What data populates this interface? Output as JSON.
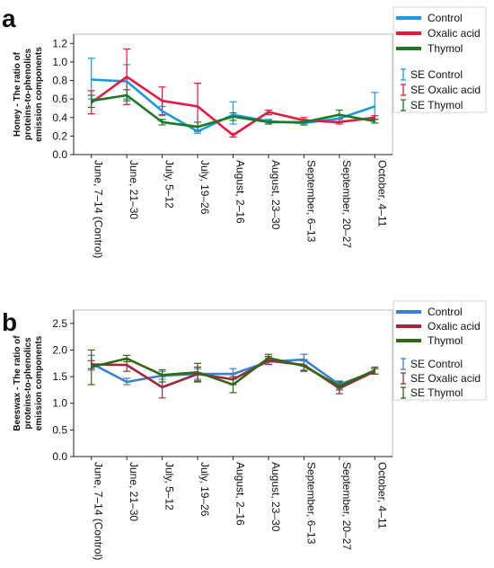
{
  "colors": {
    "control": "#1a9ae0",
    "oxalic": "#e8173f",
    "thymol": "#1a7a23"
  },
  "chart_data": [
    {
      "panel_label": "a",
      "type": "line",
      "ylabel": [
        "Honey - The ratio of",
        "proteins-to-phenolics",
        "emission components"
      ],
      "categories": [
        "June, 7–14 (Control)",
        "June, 21–30",
        "July, 5–12",
        "July, 19–26",
        "August, 2–16",
        "August, 23–30",
        "September, 6–13",
        "September, 20–27",
        "October, 4–11"
      ],
      "ylim": [
        0,
        1.3
      ],
      "yticks": [
        "0.0",
        "0.2",
        "0.4",
        "0.6",
        "0.8",
        "1.0",
        "1.2"
      ],
      "grid": false,
      "series": [
        {
          "name": "Control",
          "color": "#1a9ae0",
          "values": [
            0.81,
            0.79,
            0.47,
            0.25,
            0.43,
            0.36,
            0.34,
            0.39,
            0.52
          ],
          "se_low": [
            0.6,
            0.6,
            0.42,
            0.23,
            0.33,
            0.33,
            0.32,
            0.35,
            0.38
          ],
          "se_high": [
            1.04,
            0.97,
            0.52,
            0.3,
            0.57,
            0.38,
            0.37,
            0.43,
            0.67
          ]
        },
        {
          "name": "Oxalic acid",
          "color": "#e8173f",
          "values": [
            0.56,
            0.84,
            0.58,
            0.52,
            0.21,
            0.46,
            0.37,
            0.35,
            0.4
          ],
          "se_low": [
            0.44,
            0.54,
            0.43,
            0.25,
            0.19,
            0.43,
            0.34,
            0.33,
            0.38
          ],
          "se_high": [
            0.69,
            1.14,
            0.73,
            0.77,
            0.23,
            0.48,
            0.4,
            0.38,
            0.42
          ]
        },
        {
          "name": "Thymol",
          "color": "#1a7a23",
          "values": [
            0.58,
            0.64,
            0.35,
            0.3,
            0.41,
            0.35,
            0.35,
            0.43,
            0.36
          ],
          "se_low": [
            0.51,
            0.58,
            0.32,
            0.26,
            0.37,
            0.33,
            0.32,
            0.39,
            0.34
          ],
          "se_high": [
            0.64,
            0.7,
            0.38,
            0.35,
            0.45,
            0.37,
            0.38,
            0.48,
            0.38
          ]
        }
      ],
      "legend": {
        "placement": "top-right",
        "lines": [
          "Control",
          "Oxalic acid",
          "Thymol"
        ],
        "se": [
          "SE Control",
          "SE Oxalic acid",
          "SE Thymol"
        ]
      }
    },
    {
      "panel_label": "b",
      "type": "line",
      "ylabel": [
        "Beeswax - The ratio of",
        "proteins-to-phenolics",
        "emission components"
      ],
      "categories": [
        "June, 7–14 (Control)",
        "June, 21–30",
        "July, 5–12",
        "July, 19–26",
        "August, 2–16",
        "August, 23–30",
        "September, 6–13",
        "September, 20–27",
        "October, 4–11"
      ],
      "ylim": [
        0,
        2.75
      ],
      "yticks": [
        "0.0",
        "0.5",
        "1.0",
        "1.5",
        "2.0",
        "2.5"
      ],
      "grid": false,
      "series": [
        {
          "name": "Control",
          "color": "#3a80d8",
          "values": [
            1.75,
            1.4,
            1.52,
            1.55,
            1.55,
            1.78,
            1.82,
            1.35,
            1.6
          ],
          "se_low": [
            1.62,
            1.35,
            1.45,
            1.45,
            1.45,
            1.73,
            1.72,
            1.28,
            1.55
          ],
          "se_high": [
            1.9,
            1.47,
            1.6,
            1.65,
            1.65,
            1.85,
            1.92,
            1.42,
            1.65
          ]
        },
        {
          "name": "Oxalic acid",
          "color": "#a0283a",
          "values": [
            1.73,
            1.72,
            1.3,
            1.55,
            1.45,
            1.8,
            1.72,
            1.28,
            1.6
          ],
          "se_low": [
            1.65,
            1.6,
            1.1,
            1.42,
            1.35,
            1.73,
            1.62,
            1.18,
            1.55
          ],
          "se_high": [
            1.8,
            1.82,
            1.5,
            1.68,
            1.55,
            1.88,
            1.82,
            1.38,
            1.65
          ]
        },
        {
          "name": "Thymol",
          "color": "#2e6a12",
          "values": [
            1.68,
            1.84,
            1.53,
            1.58,
            1.35,
            1.85,
            1.7,
            1.32,
            1.62
          ],
          "se_low": [
            1.35,
            1.78,
            1.4,
            1.4,
            1.2,
            1.78,
            1.6,
            1.25,
            1.55
          ],
          "se_high": [
            2.0,
            1.9,
            1.63,
            1.75,
            1.5,
            1.92,
            1.8,
            1.4,
            1.68
          ]
        }
      ],
      "legend": {
        "placement": "top-right",
        "lines": [
          "Control",
          "Oxalic acid",
          "Thymol"
        ],
        "se": [
          "SE Control",
          "SE Oxalic acid",
          "SE Thymol"
        ]
      }
    }
  ]
}
